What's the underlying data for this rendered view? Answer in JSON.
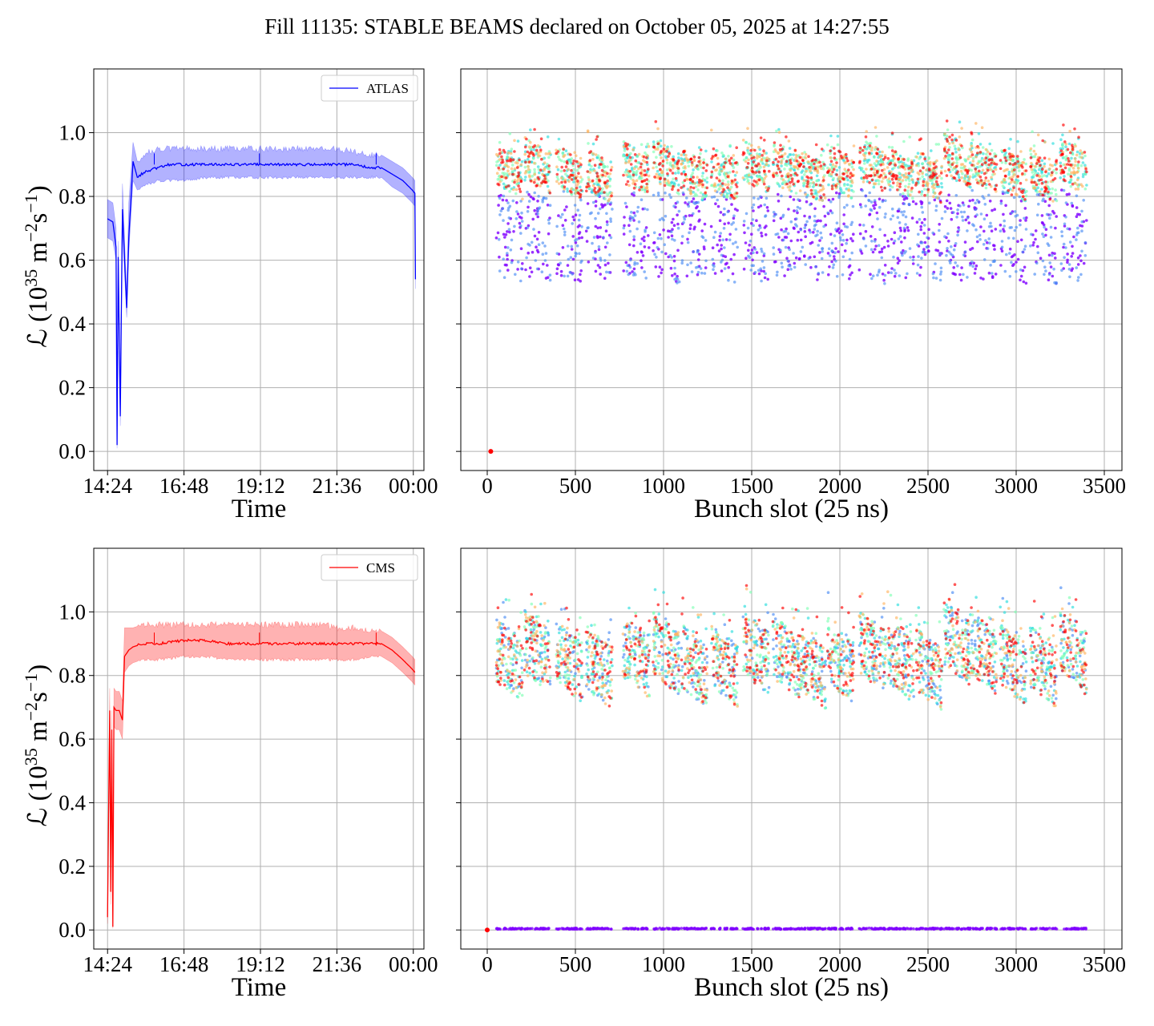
{
  "figure": {
    "title": "Fill 11135: STABLE BEAMS declared on October 05, 2025 at 14:27:55"
  },
  "colors": {
    "atlas": "#0000ff",
    "cms": "#ff0000",
    "grid": "#b0b0b0",
    "bunch_palette": [
      "#8000ff",
      "#4a8cf5",
      "#2adddd",
      "#80ffb4",
      "#ffb360",
      "#ff0000"
    ]
  },
  "chart_data": [
    {
      "type": "line",
      "panel": "top-left",
      "xlabel": "Time",
      "ylabel_parts": [
        "ℒ (10",
        "35",
        " m",
        "−2",
        "s",
        "−1",
        ")"
      ],
      "x_ticks": [
        "14:24",
        "16:48",
        "19:12",
        "21:36",
        "00:00"
      ],
      "y_ticks": [
        "0.0",
        "0.2",
        "0.4",
        "0.6",
        "0.8",
        "1.0"
      ],
      "ylim": [
        -0.06,
        1.2
      ],
      "legend": "ATLAS",
      "legend_placement": "top-right",
      "grid": true,
      "x_unit": "clock time (hh:mm), Oct 05–06, 2025",
      "series": [
        {
          "name": "ATLAS",
          "x": [
            "14:24",
            "14:34",
            "14:40",
            "14:42",
            "14:44",
            "14:48",
            "14:52",
            "15:00",
            "15:04",
            "15:12",
            "15:20",
            "15:28",
            "15:40",
            "16:00",
            "16:20",
            "16:48",
            "17:30",
            "18:10",
            "18:50",
            "19:12",
            "19:50",
            "20:30",
            "21:10",
            "21:36",
            "22:10",
            "22:40",
            "23:00",
            "23:20",
            "23:40",
            "23:58",
            "00:03",
            "00:04"
          ],
          "y": [
            0.73,
            0.72,
            0.64,
            0.02,
            0.61,
            0.11,
            0.76,
            0.45,
            0.67,
            0.91,
            0.86,
            0.87,
            0.88,
            0.89,
            0.9,
            0.9,
            0.9,
            0.9,
            0.9,
            0.9,
            0.9,
            0.9,
            0.9,
            0.9,
            0.9,
            0.89,
            0.89,
            0.87,
            0.85,
            0.82,
            0.81,
            0.54
          ],
          "band_lower": [
            0.67,
            0.66,
            0.6,
            0.01,
            0.56,
            0.08,
            0.7,
            0.42,
            0.62,
            0.85,
            0.82,
            0.83,
            0.84,
            0.85,
            0.85,
            0.85,
            0.86,
            0.86,
            0.86,
            0.86,
            0.86,
            0.86,
            0.86,
            0.86,
            0.86,
            0.86,
            0.86,
            0.83,
            0.81,
            0.78,
            0.77,
            0.51
          ],
          "band_upper": [
            0.79,
            0.78,
            0.7,
            0.03,
            0.66,
            0.14,
            0.84,
            0.5,
            0.78,
            0.97,
            0.91,
            0.92,
            0.94,
            0.95,
            0.95,
            0.95,
            0.95,
            0.95,
            0.95,
            0.95,
            0.95,
            0.95,
            0.95,
            0.95,
            0.94,
            0.93,
            0.93,
            0.91,
            0.89,
            0.86,
            0.85,
            0.57
          ]
        }
      ]
    },
    {
      "type": "scatter",
      "panel": "top-right",
      "xlabel": "Bunch slot (25 ns)",
      "x_ticks": [
        "0",
        "500",
        "1000",
        "1500",
        "2000",
        "2500",
        "3000",
        "3500"
      ],
      "xlim": [
        -150,
        3600
      ],
      "ylim": [
        -0.06,
        1.2
      ],
      "grid": true,
      "bunch_slot_range": [
        50,
        3440
      ],
      "train_starts": [
        50,
        210,
        390,
        560,
        770,
        940,
        1100,
        1270,
        1450,
        1620,
        1770,
        1930,
        2110,
        2270,
        2430,
        2590,
        2740,
        2910,
        3080,
        3250
      ],
      "train_length": 150,
      "single_point": {
        "x": 20,
        "y": 0.0
      },
      "late_colors_level": {
        "min": 0.78,
        "max": 1.02
      },
      "early_colors_level": {
        "min": 0.56,
        "max": 0.86
      }
    },
    {
      "type": "line",
      "panel": "bottom-left",
      "xlabel": "Time",
      "ylabel_parts": [
        "ℒ (10",
        "35",
        " m",
        "−2",
        "s",
        "−1",
        ")"
      ],
      "x_ticks": [
        "14:24",
        "16:48",
        "19:12",
        "21:36",
        "00:00"
      ],
      "y_ticks": [
        "0.0",
        "0.2",
        "0.4",
        "0.6",
        "0.8",
        "1.0"
      ],
      "ylim": [
        -0.06,
        1.2
      ],
      "legend": "CMS",
      "legend_placement": "top-right",
      "grid": true,
      "x_unit": "clock time (hh:mm), Oct 05–06, 2025",
      "series": [
        {
          "name": "CMS",
          "x": [
            "14:24",
            "14:28",
            "14:30",
            "14:32",
            "14:34",
            "14:36",
            "14:40",
            "14:46",
            "14:52",
            "14:56",
            "15:04",
            "15:12",
            "15:30",
            "16:00",
            "16:48",
            "17:30",
            "18:10",
            "18:50",
            "19:12",
            "19:50",
            "20:30",
            "21:10",
            "21:36",
            "22:10",
            "22:40",
            "23:00",
            "23:20",
            "23:40",
            "23:58",
            "00:03"
          ],
          "y": [
            0.04,
            0.69,
            0.12,
            0.63,
            0.01,
            0.7,
            0.69,
            0.69,
            0.66,
            0.86,
            0.88,
            0.89,
            0.9,
            0.9,
            0.91,
            0.91,
            0.9,
            0.9,
            0.9,
            0.9,
            0.9,
            0.9,
            0.9,
            0.9,
            0.9,
            0.9,
            0.88,
            0.85,
            0.82,
            0.81
          ],
          "band_lower": [
            0.02,
            0.62,
            0.08,
            0.57,
            0.005,
            0.64,
            0.63,
            0.63,
            0.6,
            0.81,
            0.83,
            0.84,
            0.85,
            0.85,
            0.86,
            0.86,
            0.85,
            0.85,
            0.85,
            0.85,
            0.85,
            0.85,
            0.85,
            0.85,
            0.86,
            0.86,
            0.84,
            0.81,
            0.78,
            0.77
          ],
          "band_upper": [
            0.06,
            0.76,
            0.16,
            0.69,
            0.02,
            0.76,
            0.75,
            0.75,
            0.72,
            0.95,
            0.95,
            0.95,
            0.96,
            0.96,
            0.96,
            0.96,
            0.96,
            0.96,
            0.96,
            0.96,
            0.96,
            0.96,
            0.95,
            0.95,
            0.94,
            0.94,
            0.92,
            0.89,
            0.86,
            0.85
          ]
        }
      ]
    },
    {
      "type": "scatter",
      "panel": "bottom-right",
      "xlabel": "Bunch slot (25 ns)",
      "x_ticks": [
        "0",
        "500",
        "1000",
        "1500",
        "2000",
        "2500",
        "3000",
        "3500"
      ],
      "xlim": [
        -150,
        3600
      ],
      "ylim": [
        -0.06,
        1.2
      ],
      "grid": true,
      "bunch_slot_range": [
        50,
        3440
      ],
      "train_starts": [
        50,
        210,
        390,
        560,
        770,
        940,
        1100,
        1270,
        1450,
        1620,
        1770,
        1930,
        2110,
        2270,
        2430,
        2590,
        2740,
        2910,
        3080,
        3250
      ],
      "train_length": 150,
      "single_point": {
        "x": 0,
        "y": 0.0
      },
      "late_colors_level": {
        "min": 0.7,
        "max": 1.06
      },
      "zero_level_color": "#8000ff"
    }
  ]
}
